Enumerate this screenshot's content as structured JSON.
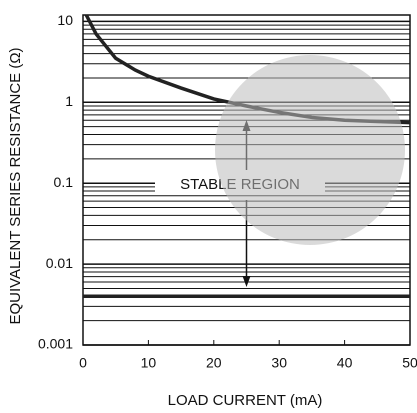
{
  "chart_data": {
    "type": "line",
    "xlabel": "LOAD CURRENT (mA)",
    "ylabel": "EQUIVALENT SERIES RESISTANCE (Ω)",
    "annotation": "STABLE REGION",
    "log_y": true,
    "xlim": [
      0,
      50
    ],
    "xticks": [
      0,
      10,
      20,
      30,
      40,
      50
    ],
    "ylim": [
      0.001,
      12
    ],
    "yticks": [
      10,
      1,
      0.1,
      0.01,
      0.001
    ],
    "y_minor_ticks": [
      0.002,
      0.003,
      0.004,
      0.005,
      0.006,
      0.007,
      0.008,
      0.009,
      0.02,
      0.03,
      0.04,
      0.05,
      0.06,
      0.07,
      0.08,
      0.09,
      0.2,
      0.3,
      0.4,
      0.5,
      0.6,
      0.7,
      0.8,
      0.9,
      2,
      3,
      4,
      5,
      6,
      7,
      8,
      9
    ],
    "grid": true,
    "series": [
      {
        "color": "#222222",
        "x": [
          0.5,
          2,
          5,
          8,
          10,
          15,
          20,
          25,
          30,
          35,
          40,
          45,
          50
        ],
        "values": [
          12,
          7,
          3.5,
          2.5,
          2.1,
          1.5,
          1.1,
          0.9,
          0.75,
          0.65,
          0.6,
          0.58,
          0.56
        ]
      },
      {
        "color": "#222222",
        "x": [
          0,
          50
        ],
        "values": [
          0.004,
          0.004
        ]
      }
    ]
  }
}
